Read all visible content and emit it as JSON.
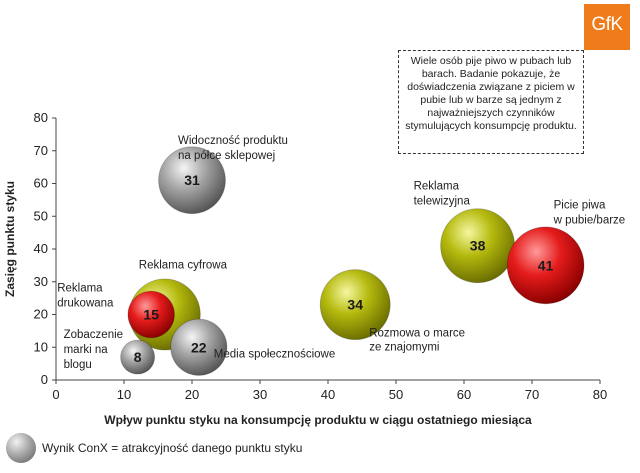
{
  "logo_text": "GfK",
  "callout_text": "Wiele osób pije piwo w pubach lub barach. Badanie pokazuje, że doświadczenia związane z piciem w pubie lub w barze są jednym z najważniejszych czynników stymulujących konsumpcję produktu.",
  "legend_text": "Wynik ConX = atrakcyjność danego punktu styku",
  "colors": {
    "gray": "#8c8c8c",
    "yellow": "#a8ad0a",
    "red": "#e01a1a",
    "logo": "#f07b1b"
  },
  "chart_data": {
    "type": "scatter",
    "title": "",
    "xlabel": "Wpływ punktu styku na konsumpcję produktu w ciągu ostatniego miesiąca",
    "ylabel": "Zasięg punktu styku",
    "xlim": [
      0,
      80
    ],
    "ylim": [
      0,
      80
    ],
    "xticks": [
      "0",
      "10",
      "20",
      "30",
      "40",
      "50",
      "60",
      "70",
      "80"
    ],
    "yticks": [
      "0",
      "10",
      "20",
      "30",
      "40",
      "50",
      "60",
      "70",
      "80"
    ],
    "grid": false,
    "points": [
      {
        "label": "Widoczność produktu\nna półce sklepowej",
        "x": 20,
        "y": 61,
        "size": 31,
        "color": "gray"
      },
      {
        "label": "Reklama cyfrowa",
        "x": 16,
        "y": 20,
        "size": 35,
        "color": "yellow"
      },
      {
        "label": "Reklama\ndrukowana",
        "x": 14,
        "y": 20,
        "size": 15,
        "color": "red"
      },
      {
        "label": "Zobaczenie\nmarki na\nblogu",
        "x": 12,
        "y": 7,
        "size": 8,
        "color": "gray"
      },
      {
        "label": "Media społecznościowe",
        "x": 21,
        "y": 10,
        "size": 22,
        "color": "gray"
      },
      {
        "label": "Rozmowa o marce\nze znajomymi",
        "x": 44,
        "y": 23,
        "size": 34,
        "color": "yellow"
      },
      {
        "label": "Reklama\ntelewizyjna",
        "x": 62,
        "y": 41,
        "size": 38,
        "color": "yellow"
      },
      {
        "label": "Picie piwa\nw pubie/barze",
        "x": 72,
        "y": 35,
        "size": 41,
        "color": "red"
      }
    ]
  }
}
